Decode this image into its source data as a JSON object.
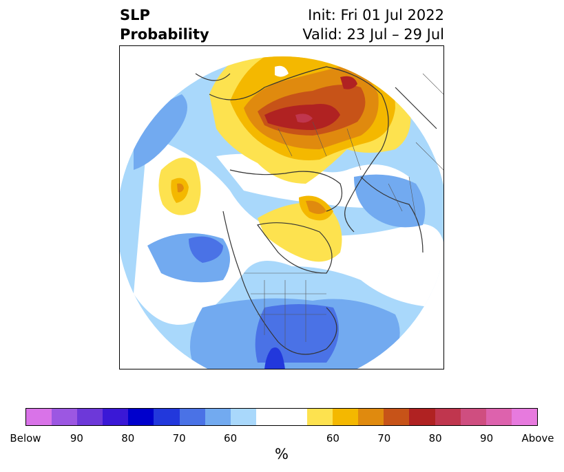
{
  "title": {
    "left_line1": "SLP",
    "left_line2": "Probability",
    "right_line1": "Init: Fri 01 Jul 2022",
    "right_line2": "Valid: 23 Jul – 29 Jul"
  },
  "colorbar": {
    "unit": "%",
    "colors_below": [
      "#d973e8",
      "#9c57e2",
      "#6d38d9",
      "#3a18d6",
      "#0000cc",
      "#2238dc",
      "#4a72e6",
      "#72aaf0",
      "#a9d8fb"
    ],
    "neutral_color": "#ffffff",
    "colors_above": [
      "#fde24f",
      "#f4b800",
      "#e08a0e",
      "#c75318",
      "#b02222",
      "#c0364e",
      "#cf4e80",
      "#dd62ad",
      "#e77ade"
    ],
    "tick_labels": [
      "Below",
      "90",
      "80",
      "70",
      "60",
      "60",
      "70",
      "80",
      "90",
      "Above"
    ]
  },
  "map": {
    "projection": "north-polar stereographic",
    "fields": [
      "below-normal-probability",
      "above-normal-probability"
    ]
  }
}
